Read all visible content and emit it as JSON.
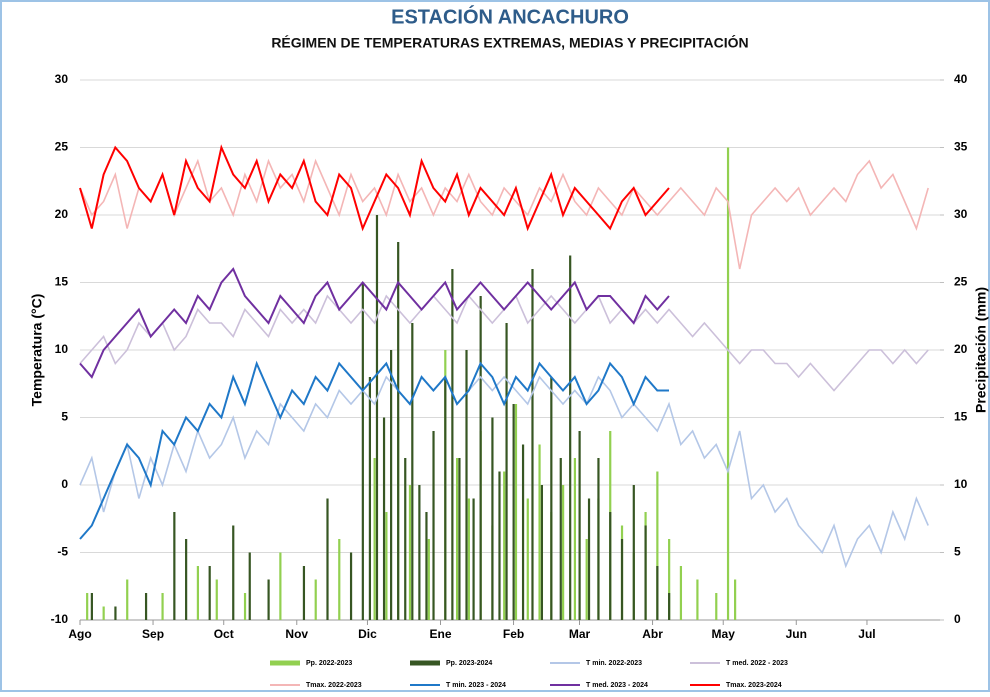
{
  "chart_data": {
    "type": "line",
    "title": "ESTACIÓN ANCACHURO",
    "subtitle": "RÉGIMEN DE TEMPERATURAS EXTREMAS, MEDIAS Y PRECIPITACIÓN",
    "y_label": "Temperatura (°C)",
    "y2_label": "Precipitación (mm)",
    "xlim": [
      0,
      365
    ],
    "xticks": [
      {
        "value": 0,
        "label": "Ago"
      },
      {
        "value": 31,
        "label": "Sep"
      },
      {
        "value": 61,
        "label": "Oct"
      },
      {
        "value": 92,
        "label": "Nov"
      },
      {
        "value": 122,
        "label": "Dic"
      },
      {
        "value": 153,
        "label": "Ene"
      },
      {
        "value": 184,
        "label": "Feb"
      },
      {
        "value": 212,
        "label": "Mar"
      },
      {
        "value": 243,
        "label": "Abr"
      },
      {
        "value": 273,
        "label": "May"
      },
      {
        "value": 304,
        "label": "Jun"
      },
      {
        "value": 334,
        "label": "Jul"
      }
    ],
    "ylim": [
      -10,
      30
    ],
    "yticks": [
      -10,
      -5,
      0,
      5,
      10,
      15,
      20,
      25,
      30
    ],
    "y2lim": [
      0,
      40
    ],
    "y2ticks": [
      0,
      5,
      10,
      15,
      20,
      25,
      30,
      35,
      40
    ],
    "grid": true,
    "legend": "bottom",
    "series": [
      {
        "name": "Pp. 2022-2023",
        "type": "bar",
        "axis": "y2",
        "color": "#92d050",
        "x": [
          3,
          10,
          20,
          35,
          50,
          58,
          70,
          85,
          100,
          110,
          125,
          130,
          135,
          140,
          148,
          155,
          160,
          165,
          170,
          175,
          180,
          185,
          190,
          195,
          200,
          205,
          210,
          215,
          220,
          225,
          230,
          235,
          240,
          245,
          250,
          255,
          262,
          270,
          275,
          278
        ],
        "values": [
          2,
          1,
          3,
          2,
          4,
          3,
          2,
          5,
          3,
          6,
          12,
          8,
          15,
          10,
          6,
          20,
          12,
          9,
          14,
          7,
          11,
          16,
          9,
          13,
          8,
          10,
          12,
          6,
          9,
          14,
          7,
          5,
          8,
          11,
          6,
          4,
          3,
          2,
          35,
          3
        ]
      },
      {
        "name": "Pp. 2023-2024",
        "type": "bar",
        "axis": "y2",
        "color": "#375623",
        "x": [
          5,
          15,
          28,
          40,
          45,
          55,
          65,
          72,
          80,
          95,
          105,
          115,
          120,
          123,
          126,
          129,
          132,
          135,
          138,
          141,
          144,
          147,
          150,
          155,
          158,
          161,
          164,
          167,
          170,
          175,
          178,
          181,
          184,
          188,
          192,
          196,
          200,
          204,
          208,
          212,
          216,
          220,
          225,
          230,
          235,
          240,
          245,
          250
        ],
        "values": [
          2,
          1,
          2,
          8,
          6,
          4,
          7,
          5,
          3,
          4,
          9,
          5,
          25,
          18,
          30,
          15,
          20,
          28,
          12,
          22,
          10,
          8,
          14,
          18,
          26,
          12,
          20,
          9,
          24,
          15,
          11,
          22,
          16,
          13,
          26,
          10,
          18,
          12,
          27,
          14,
          9,
          12,
          8,
          6,
          10,
          7,
          4,
          2
        ]
      },
      {
        "name": "T min. 2022-2023",
        "type": "line",
        "color": "#b4c7e7",
        "x": [
          0,
          5,
          10,
          15,
          20,
          25,
          30,
          35,
          40,
          45,
          50,
          55,
          60,
          65,
          70,
          75,
          80,
          85,
          90,
          95,
          100,
          105,
          110,
          115,
          120,
          125,
          130,
          135,
          140,
          145,
          150,
          155,
          160,
          165,
          170,
          175,
          180,
          185,
          190,
          195,
          200,
          205,
          210,
          215,
          220,
          225,
          230,
          235,
          240,
          245,
          250,
          255,
          260,
          265,
          270,
          275,
          280,
          285,
          290,
          295,
          300,
          305,
          310,
          315,
          320,
          325,
          330,
          335,
          340,
          345,
          350,
          355,
          360
        ],
        "values": [
          0,
          2,
          -2,
          1,
          3,
          -1,
          2,
          0,
          3,
          1,
          4,
          2,
          3,
          5,
          2,
          4,
          3,
          6,
          5,
          4,
          6,
          5,
          7,
          6,
          7,
          6,
          8,
          7,
          6,
          8,
          7,
          8,
          6,
          7,
          8,
          7,
          8,
          7,
          6,
          8,
          7,
          6,
          7,
          6,
          8,
          7,
          5,
          6,
          5,
          4,
          6,
          3,
          4,
          2,
          3,
          1,
          4,
          -1,
          0,
          -2,
          -1,
          -3,
          -4,
          -5,
          -3,
          -6,
          -4,
          -3,
          -5,
          -2,
          -4,
          -1,
          -3
        ]
      },
      {
        "name": "T med. 2022 - 2023",
        "type": "line",
        "color": "#ccc0da",
        "x": [
          0,
          5,
          10,
          15,
          20,
          25,
          30,
          35,
          40,
          45,
          50,
          55,
          60,
          65,
          70,
          75,
          80,
          85,
          90,
          95,
          100,
          105,
          110,
          115,
          120,
          125,
          130,
          135,
          140,
          145,
          150,
          155,
          160,
          165,
          170,
          175,
          180,
          185,
          190,
          195,
          200,
          205,
          210,
          215,
          220,
          225,
          230,
          235,
          240,
          245,
          250,
          255,
          260,
          265,
          270,
          275,
          280,
          285,
          290,
          295,
          300,
          305,
          310,
          315,
          320,
          325,
          330,
          335,
          340,
          345,
          350,
          355,
          360
        ],
        "values": [
          9,
          10,
          11,
          9,
          10,
          12,
          11,
          12,
          10,
          11,
          13,
          12,
          12,
          11,
          13,
          12,
          11,
          13,
          12,
          13,
          12,
          14,
          13,
          12,
          13,
          12,
          14,
          13,
          12,
          13,
          14,
          13,
          12,
          14,
          13,
          12,
          13,
          14,
          12,
          13,
          14,
          13,
          12,
          13,
          14,
          12,
          13,
          12,
          13,
          12,
          13,
          12,
          11,
          12,
          11,
          10,
          9,
          10,
          10,
          9,
          9,
          8,
          9,
          8,
          7,
          8,
          9,
          10,
          10,
          9,
          10,
          9,
          10
        ]
      },
      {
        "name": "Tmax. 2022-2023",
        "type": "line",
        "color": "#f4b6b6",
        "x": [
          0,
          5,
          10,
          15,
          20,
          25,
          30,
          35,
          40,
          45,
          50,
          55,
          60,
          65,
          70,
          75,
          80,
          85,
          90,
          95,
          100,
          105,
          110,
          115,
          120,
          125,
          130,
          135,
          140,
          145,
          150,
          155,
          160,
          165,
          170,
          175,
          180,
          185,
          190,
          195,
          200,
          205,
          210,
          215,
          220,
          225,
          230,
          235,
          240,
          245,
          250,
          255,
          260,
          265,
          270,
          275,
          280,
          285,
          290,
          295,
          300,
          305,
          310,
          315,
          320,
          325,
          330,
          335,
          340,
          345,
          350,
          355,
          360
        ],
        "values": [
          22,
          20,
          21,
          23,
          19,
          22,
          21,
          23,
          20,
          22,
          24,
          21,
          22,
          20,
          23,
          21,
          24,
          22,
          23,
          21,
          24,
          22,
          20,
          23,
          21,
          22,
          20,
          23,
          21,
          22,
          20,
          22,
          21,
          23,
          21,
          20,
          22,
          21,
          20,
          22,
          21,
          23,
          21,
          20,
          22,
          21,
          20,
          22,
          21,
          20,
          21,
          22,
          21,
          20,
          22,
          21,
          16,
          20,
          21,
          22,
          21,
          22,
          20,
          21,
          22,
          21,
          23,
          24,
          22,
          23,
          21,
          19,
          22
        ]
      },
      {
        "name": "T min. 2023 - 2024",
        "type": "line",
        "color": "#1f78c8",
        "x": [
          0,
          5,
          10,
          15,
          20,
          25,
          30,
          35,
          40,
          45,
          50,
          55,
          60,
          65,
          70,
          75,
          80,
          85,
          90,
          95,
          100,
          105,
          110,
          115,
          120,
          125,
          130,
          135,
          140,
          145,
          150,
          155,
          160,
          165,
          170,
          175,
          180,
          185,
          190,
          195,
          200,
          205,
          210,
          215,
          220,
          225,
          230,
          235,
          240,
          245,
          250
        ],
        "values": [
          -4,
          -3,
          -1,
          1,
          3,
          2,
          0,
          4,
          3,
          5,
          4,
          6,
          5,
          8,
          6,
          9,
          7,
          5,
          7,
          6,
          8,
          7,
          9,
          8,
          7,
          8,
          9,
          7,
          6,
          8,
          7,
          8,
          6,
          7,
          9,
          8,
          6,
          8,
          7,
          9,
          8,
          7,
          8,
          6,
          7,
          9,
          8,
          6,
          8,
          7,
          7
        ]
      },
      {
        "name": "T med. 2023 - 2024",
        "type": "line",
        "color": "#7030a0",
        "x": [
          0,
          5,
          10,
          15,
          20,
          25,
          30,
          35,
          40,
          45,
          50,
          55,
          60,
          65,
          70,
          75,
          80,
          85,
          90,
          95,
          100,
          105,
          110,
          115,
          120,
          125,
          130,
          135,
          140,
          145,
          150,
          155,
          160,
          165,
          170,
          175,
          180,
          185,
          190,
          195,
          200,
          205,
          210,
          215,
          220,
          225,
          230,
          235,
          240,
          245,
          250
        ],
        "values": [
          9,
          8,
          10,
          11,
          12,
          13,
          11,
          12,
          13,
          12,
          14,
          13,
          15,
          16,
          14,
          13,
          12,
          14,
          13,
          12,
          14,
          15,
          13,
          14,
          15,
          14,
          13,
          15,
          14,
          13,
          14,
          15,
          13,
          14,
          15,
          14,
          13,
          14,
          15,
          14,
          13,
          14,
          15,
          13,
          14,
          14,
          13,
          12,
          14,
          13,
          14
        ]
      },
      {
        "name": "Tmax. 2023-2024",
        "type": "line",
        "color": "#ff0000",
        "x": [
          0,
          5,
          10,
          15,
          20,
          25,
          30,
          35,
          40,
          45,
          50,
          55,
          60,
          65,
          70,
          75,
          80,
          85,
          90,
          95,
          100,
          105,
          110,
          115,
          120,
          125,
          130,
          135,
          140,
          145,
          150,
          155,
          160,
          165,
          170,
          175,
          180,
          185,
          190,
          195,
          200,
          205,
          210,
          215,
          220,
          225,
          230,
          235,
          240,
          245,
          250
        ],
        "values": [
          22,
          19,
          23,
          25,
          24,
          22,
          21,
          23,
          20,
          24,
          22,
          21,
          25,
          23,
          22,
          24,
          21,
          23,
          22,
          24,
          21,
          20,
          23,
          22,
          19,
          21,
          23,
          22,
          20,
          24,
          22,
          21,
          23,
          20,
          22,
          21,
          20,
          22,
          19,
          21,
          23,
          20,
          22,
          21,
          20,
          19,
          21,
          22,
          20,
          21,
          22
        ]
      }
    ]
  }
}
